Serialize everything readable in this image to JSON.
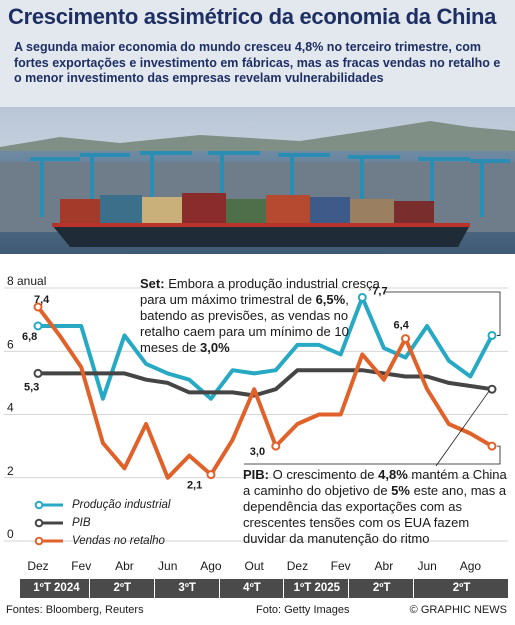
{
  "header": {
    "title": "Crescimento assimétrico da economia da China",
    "subtitle": "A segunda maior economia do mundo cresceu 4,8% no terceiro trimestre, com fortes exportações e investimento em fábricas, mas as fracas vendas no retalho e o menor investimento das empresas revelam vulnerabilidades"
  },
  "notes": {
    "set_lead": "Set:",
    "set_text": "Embora a produção industrial cresça para um máximo trimestral de",
    "set_value1": "6,5%",
    "set_text2": ", batendo as previsões, as vendas no retalho caem para um mínimo de 10 meses de",
    "set_value2": "3,0%",
    "pib_lead": "PIB:",
    "pib_text": "O crescimento de",
    "pib_value1": "4,8%",
    "pib_text2": "mantém a China a caminho do objetivo de",
    "pib_value2": "5%",
    "pib_text3": "este ano, mas a dependência das exportações com as crescentes tensões com os EUA fazem duvidar da manutenção do ritmo"
  },
  "legend": {
    "industrial": "Produção industrial",
    "pib": "PIB",
    "retail": "Vendas no retalho"
  },
  "colors": {
    "industrial": "#27a9c4",
    "pib": "#454545",
    "retail": "#e0622a",
    "title": "#1d2f63"
  },
  "chart_data": {
    "type": "line",
    "ylim": [
      0,
      8
    ],
    "y_ticks": [
      "0",
      "2",
      "4",
      "6",
      "8 anual"
    ],
    "y_tick_values": [
      0,
      2,
      4,
      6,
      8
    ],
    "month_labels": [
      "Dez",
      "Fev",
      "Abr",
      "Jun",
      "Ago",
      "Out",
      "Dez",
      "Fev",
      "Abr",
      "Jun",
      "Ago"
    ],
    "quarters": [
      "1ºT 2024",
      "2ºT",
      "3ºT",
      "4ºT",
      "1ºT 2025",
      "2ºT",
      "2ºT"
    ],
    "series": [
      {
        "name": "Produção industrial",
        "key": "industrial",
        "values": [
          6.8,
          6.8,
          6.8,
          4.5,
          6.5,
          5.6,
          5.3,
          5.1,
          4.5,
          5.4,
          5.3,
          5.4,
          6.2,
          6.2,
          5.9,
          7.7,
          6.1,
          5.8,
          6.8,
          5.7,
          5.2,
          6.5
        ],
        "labels": [
          {
            "index": 0,
            "text": "6,8"
          },
          {
            "index": 15,
            "text": "7,7"
          }
        ]
      },
      {
        "name": "PIB",
        "key": "pib",
        "values": [
          5.3,
          5.3,
          5.3,
          5.3,
          5.3,
          5.1,
          5.0,
          4.7,
          4.7,
          4.7,
          4.6,
          4.8,
          5.4,
          5.4,
          5.4,
          5.4,
          5.3,
          5.2,
          5.2,
          5.0,
          4.9,
          4.8
        ],
        "labels": [
          {
            "index": 0,
            "text": "5,3"
          }
        ]
      },
      {
        "name": "Vendas no retalho",
        "key": "retail",
        "values": [
          7.4,
          6.5,
          5.5,
          3.1,
          2.3,
          3.7,
          2.0,
          2.7,
          2.1,
          3.2,
          4.8,
          3.0,
          3.7,
          4.0,
          4.0,
          5.9,
          5.1,
          6.4,
          4.8,
          3.7,
          3.4,
          3.0
        ],
        "labels": [
          {
            "index": 0,
            "text": "7,4"
          },
          {
            "index": 8,
            "text": "2,1"
          },
          {
            "index": 11,
            "text": "3,0"
          },
          {
            "index": 17,
            "text": "6,4"
          }
        ]
      }
    ]
  },
  "footer": {
    "sources": "Fontes: Bloomberg, Reuters",
    "photo": "Foto: Getty Images",
    "brand": "© GRAPHIC NEWS"
  }
}
